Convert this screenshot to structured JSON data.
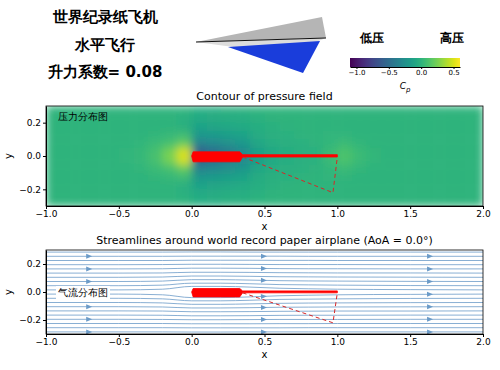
{
  "header": {
    "lines": [
      "世界纪录纸飞机",
      "水平飞行",
      "升力系数= 0.08"
    ],
    "low_label": "低压",
    "high_label": "高压"
  },
  "chart_data": [
    {
      "type": "heatmap",
      "title": "Contour of pressure field",
      "annotation": "压力分布图",
      "xlabel": "x",
      "ylabel": "y",
      "xlim": [
        -1,
        2
      ],
      "ylim": [
        -0.3,
        0.3
      ],
      "xticks": [
        {
          "value": -1,
          "label": "−1.0"
        },
        {
          "value": -0.5,
          "label": "−0.5"
        },
        {
          "value": 0,
          "label": "0.0"
        },
        0.5,
        {
          "value": 1,
          "label": "1.0"
        },
        1.5,
        {
          "value": 2,
          "label": "2.0"
        }
      ],
      "yticks": [
        {
          "value": -0.2,
          "label": "−0.2"
        },
        {
          "value": 0,
          "label": "0.0"
        },
        0.2
      ],
      "cells": {
        "x_edges": [
          -1,
          -0.9,
          -0.8,
          -0.7,
          -0.6,
          -0.5,
          -0.4,
          -0.3,
          -0.2,
          -0.1,
          0,
          0.1,
          0.2,
          0.3,
          0.4,
          0.5,
          0.6,
          0.7,
          0.8,
          0.9,
          1,
          1.1,
          1.2,
          1.3,
          1.4,
          1.5,
          1.6,
          1.7,
          1.8,
          1.9,
          2
        ],
        "y_edges": [
          0.3,
          0.25,
          0.2,
          0.15,
          0.1,
          0.05,
          0,
          -0.05,
          -0.1,
          -0.15,
          -0.2,
          -0.25,
          -0.3
        ],
        "values": [
          [
            0,
            0,
            0,
            0,
            0,
            0,
            0,
            0,
            0,
            0,
            -0.04,
            -0.04,
            -0.03,
            -0.02,
            -0.01,
            0,
            0,
            0,
            0,
            0,
            0,
            0,
            0,
            0,
            0,
            0,
            0,
            0,
            0,
            0
          ],
          [
            0,
            0,
            0,
            0,
            0,
            0,
            0,
            0,
            0,
            -0.02,
            -0.07,
            -0.06,
            -0.05,
            -0.04,
            -0.02,
            -0.01,
            0,
            0,
            0,
            0,
            0,
            0,
            0,
            0,
            0,
            0,
            0,
            0,
            0,
            0
          ],
          [
            0,
            0,
            0,
            0,
            0,
            0,
            0,
            0,
            0,
            -0.03,
            -0.12,
            -0.1,
            -0.09,
            -0.07,
            -0.04,
            -0.02,
            -0.01,
            0,
            0,
            0,
            0,
            0,
            0,
            0,
            0,
            0,
            0,
            0,
            0,
            0
          ],
          [
            0,
            0,
            0,
            0,
            0,
            0,
            0,
            0.02,
            0.04,
            0.07,
            -0.2,
            -0.18,
            -0.15,
            -0.12,
            -0.06,
            -0.03,
            -0.02,
            -0.01,
            0,
            0.01,
            0.01,
            0,
            0,
            0,
            0,
            0,
            0,
            0,
            0,
            0
          ],
          [
            0,
            0,
            0,
            0,
            0,
            0,
            0.02,
            0.05,
            0.1,
            0.2,
            -0.35,
            -0.3,
            -0.25,
            -0.2,
            -0.1,
            -0.05,
            -0.03,
            -0.02,
            -0.01,
            0.02,
            0.05,
            0.02,
            0,
            0,
            0,
            0,
            0,
            0,
            0,
            0
          ],
          [
            0,
            0,
            0,
            0,
            0,
            0.01,
            0.03,
            0.1,
            0.25,
            0.5,
            -0.6,
            -0.5,
            -0.4,
            -0.3,
            -0.15,
            -0.08,
            -0.05,
            -0.03,
            -0.02,
            0.05,
            0.12,
            0.05,
            0.02,
            0,
            0,
            0,
            0,
            0,
            0,
            0
          ],
          [
            0,
            0,
            0,
            0,
            0,
            0.01,
            0.03,
            0.1,
            0.25,
            0.5,
            -0.6,
            -0.5,
            -0.4,
            -0.3,
            -0.15,
            -0.08,
            -0.05,
            -0.03,
            -0.02,
            0.05,
            0.12,
            0.05,
            0.02,
            0,
            0,
            0,
            0,
            0,
            0,
            0
          ],
          [
            0,
            0,
            0,
            0,
            0,
            0,
            0.02,
            0.05,
            0.1,
            0.2,
            -0.35,
            -0.3,
            -0.25,
            -0.2,
            -0.1,
            -0.05,
            -0.03,
            -0.02,
            -0.01,
            0.02,
            0.05,
            0.02,
            0,
            0,
            0,
            0,
            0,
            0,
            0,
            0
          ],
          [
            0,
            0,
            0,
            0,
            0,
            0,
            0,
            0.02,
            0.04,
            0.07,
            -0.2,
            -0.18,
            -0.15,
            -0.12,
            -0.06,
            -0.03,
            -0.02,
            -0.01,
            0,
            0.01,
            0.01,
            0,
            0,
            0,
            0,
            0,
            0,
            0,
            0,
            0
          ],
          [
            0,
            0,
            0,
            0,
            0,
            0,
            0,
            0,
            0,
            -0.03,
            -0.12,
            -0.1,
            -0.09,
            -0.07,
            -0.04,
            -0.02,
            -0.01,
            0,
            0,
            0,
            0,
            0,
            0,
            0,
            0,
            0,
            0,
            0,
            0,
            0
          ],
          [
            0,
            0,
            0,
            0,
            0,
            0,
            0,
            0,
            0,
            -0.02,
            -0.07,
            -0.06,
            -0.05,
            -0.04,
            -0.02,
            -0.01,
            0,
            0,
            0,
            0,
            0,
            0,
            0,
            0,
            0,
            0,
            0,
            0,
            0,
            0
          ],
          [
            0,
            0,
            0,
            0,
            0,
            0,
            0,
            0,
            0,
            0,
            -0.04,
            -0.04,
            -0.03,
            -0.02,
            -0.01,
            0,
            0,
            0,
            0,
            0,
            0,
            0,
            0,
            0,
            0,
            0,
            0,
            0,
            0,
            0
          ]
        ]
      },
      "colorbar": {
        "range": [
          -1.1,
          0.6
        ],
        "ticks": [
          {
            "value": -1,
            "label": "−1.0"
          },
          {
            "value": -0.5,
            "label": "−0.5"
          },
          {
            "value": 0,
            "label": "0.0"
          },
          0.5
        ],
        "label": "Cp"
      },
      "outline": {
        "x": [
          0,
          0.01,
          0.33,
          0.35,
          1,
          1,
          0.35,
          0.33,
          0.01,
          0
        ],
        "y": [
          0,
          0.025,
          0.025,
          0.008,
          0.008,
          -0.006,
          -0.006,
          -0.035,
          -0.035,
          0
        ],
        "color": "#ff0000"
      },
      "keel": {
        "x": [
          0.35,
          0.97,
          1
        ],
        "y": [
          -0.006,
          -0.22,
          -0.006
        ],
        "color": "#d62728",
        "line_style": "dashed"
      }
    },
    {
      "type": "streamlines",
      "title": "Streamlines around world record paper airplane (AoA = 0.0°)",
      "annotation": "气流分布图",
      "xlabel": "x",
      "ylabel": "y",
      "xlim": [
        -1,
        2
      ],
      "ylim": [
        -0.3,
        0.3
      ],
      "xticks": [
        {
          "value": -1,
          "label": "−1.0"
        },
        {
          "value": -0.5,
          "label": "−0.5"
        },
        {
          "value": 0,
          "label": "0.0"
        },
        0.5,
        {
          "value": 1,
          "label": "1.0"
        },
        1.5,
        {
          "value": 2,
          "label": "2.0"
        }
      ],
      "yticks": [
        {
          "value": -0.2,
          "label": "−0.2"
        },
        {
          "value": 0,
          "label": "0.0"
        },
        0.2
      ],
      "color": "#6b9bc8",
      "x": [
        -1,
        -0.5,
        -0.2,
        0,
        0.2,
        0.4,
        0.6,
        0.8,
        1,
        1.5,
        2
      ],
      "series": [
        {
          "values": [
            0.285,
            0.285,
            0.285,
            0.286,
            0.286,
            0.285,
            0.285,
            0.285,
            0.285,
            0.285,
            0.285
          ]
        },
        {
          "values": [
            0.255,
            0.255,
            0.255,
            0.256,
            0.256,
            0.256,
            0.256,
            0.255,
            0.255,
            0.255,
            0.255
          ]
        },
        {
          "values": [
            0.225,
            0.225,
            0.225,
            0.227,
            0.227,
            0.227,
            0.226,
            0.226,
            0.225,
            0.225,
            0.225
          ]
        },
        {
          "values": [
            0.195,
            0.195,
            0.196,
            0.198,
            0.198,
            0.197,
            0.196,
            0.196,
            0.196,
            0.195,
            0.195
          ]
        },
        {
          "values": [
            0.165,
            0.165,
            0.166,
            0.17,
            0.17,
            0.169,
            0.167,
            0.166,
            0.166,
            0.165,
            0.165
          ]
        },
        {
          "values": [
            0.135,
            0.135,
            0.136,
            0.141,
            0.141,
            0.14,
            0.138,
            0.137,
            0.136,
            0.136,
            0.135
          ]
        },
        {
          "values": [
            0.105,
            0.105,
            0.107,
            0.114,
            0.114,
            0.112,
            0.109,
            0.108,
            0.107,
            0.106,
            0.105
          ]
        },
        {
          "values": [
            0.075,
            0.075,
            0.078,
            0.088,
            0.088,
            0.085,
            0.081,
            0.079,
            0.078,
            0.076,
            0.075
          ]
        },
        {
          "values": [
            0.045,
            0.045,
            0.049,
            0.063,
            0.063,
            0.059,
            0.053,
            0.051,
            0.049,
            0.046,
            0.045
          ]
        },
        {
          "values": [
            0.015,
            0.015,
            0.02,
            0.04,
            0.04,
            0.035,
            0.027,
            0.023,
            0.02,
            0.017,
            0.015
          ]
        },
        {
          "values": [
            -0.015,
            -0.015,
            -0.02,
            -0.04,
            -0.04,
            -0.035,
            -0.027,
            -0.023,
            -0.02,
            -0.017,
            -0.015
          ]
        },
        {
          "values": [
            -0.045,
            -0.045,
            -0.049,
            -0.063,
            -0.063,
            -0.059,
            -0.053,
            -0.051,
            -0.049,
            -0.046,
            -0.045
          ]
        },
        {
          "values": [
            -0.075,
            -0.075,
            -0.078,
            -0.088,
            -0.088,
            -0.085,
            -0.081,
            -0.079,
            -0.078,
            -0.076,
            -0.075
          ]
        },
        {
          "values": [
            -0.105,
            -0.105,
            -0.107,
            -0.114,
            -0.114,
            -0.112,
            -0.109,
            -0.108,
            -0.107,
            -0.106,
            -0.105
          ]
        },
        {
          "values": [
            -0.135,
            -0.135,
            -0.136,
            -0.141,
            -0.141,
            -0.14,
            -0.138,
            -0.137,
            -0.136,
            -0.136,
            -0.135
          ]
        },
        {
          "values": [
            -0.165,
            -0.165,
            -0.166,
            -0.17,
            -0.17,
            -0.169,
            -0.167,
            -0.166,
            -0.166,
            -0.165,
            -0.165
          ]
        },
        {
          "values": [
            -0.195,
            -0.195,
            -0.196,
            -0.198,
            -0.198,
            -0.197,
            -0.196,
            -0.196,
            -0.196,
            -0.195,
            -0.195
          ]
        },
        {
          "values": [
            -0.225,
            -0.225,
            -0.225,
            -0.227,
            -0.227,
            -0.227,
            -0.226,
            -0.226,
            -0.225,
            -0.225,
            -0.225
          ]
        },
        {
          "values": [
            -0.255,
            -0.255,
            -0.255,
            -0.256,
            -0.256,
            -0.256,
            -0.256,
            -0.255,
            -0.255,
            -0.255,
            -0.255
          ]
        },
        {
          "values": [
            -0.285,
            -0.285,
            -0.285,
            -0.286,
            -0.286,
            -0.285,
            -0.285,
            -0.285,
            -0.285,
            -0.285,
            -0.285
          ]
        }
      ],
      "outline": {
        "x": [
          0,
          0.01,
          0.33,
          0.35,
          1,
          1,
          0.35,
          0.33,
          0.01,
          0
        ],
        "y": [
          0,
          0.025,
          0.025,
          0.008,
          0.008,
          -0.006,
          -0.006,
          -0.035,
          -0.035,
          0
        ],
        "color": "#ff0000"
      },
      "keel": {
        "x": [
          0.35,
          0.97,
          1
        ],
        "y": [
          -0.006,
          -0.22,
          -0.006
        ],
        "color": "#d62728",
        "line_style": "dashed"
      }
    }
  ]
}
